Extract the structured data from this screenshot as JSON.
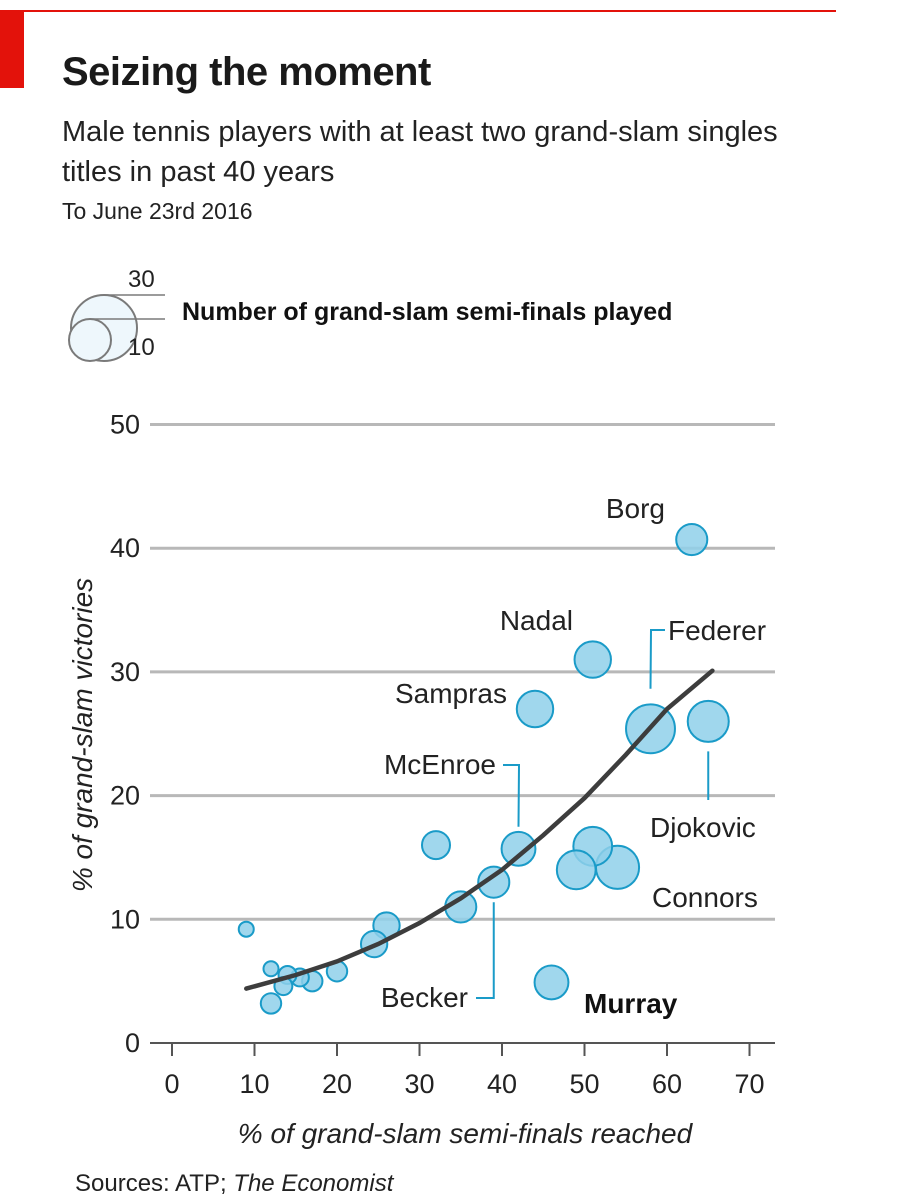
{
  "header": {
    "title": "Seizing the moment",
    "subtitle": "Male tennis players with at least two grand-slam singles titles in past 40 years",
    "note": "To June 23rd 2016"
  },
  "legend": {
    "label": "Number of grand-slam semi-finals played",
    "large_value": "30",
    "small_value": "10"
  },
  "source": {
    "prefix": "Sources: ATP; ",
    "publication": "The Economist"
  },
  "colors": {
    "accent": "#e3120b",
    "bubble_fill": "#8fd0ea",
    "bubble_stroke": "#1a9bc8",
    "trend": "#3d3d3d",
    "grid": "#b8b8b8"
  },
  "chart_data": {
    "type": "scatter",
    "xlabel": "% of grand-slam semi-finals reached",
    "ylabel": "% of grand-slam victories",
    "xlim": [
      0,
      70
    ],
    "ylim": [
      0,
      50
    ],
    "x_ticks": [
      0,
      10,
      20,
      30,
      40,
      50,
      60,
      70
    ],
    "y_ticks": [
      0,
      10,
      20,
      30,
      40,
      50
    ],
    "grid": "horizontal",
    "size_measure": "Number of grand-slam semi-finals played",
    "points": [
      {
        "label": "Borg",
        "x": 63,
        "y": 40.7,
        "size": 10
      },
      {
        "label": "Nadal",
        "x": 51,
        "y": 31,
        "size": 14
      },
      {
        "label": "Sampras",
        "x": 44,
        "y": 27,
        "size": 14
      },
      {
        "label": "Federer",
        "x": 58,
        "y": 25.4,
        "size": 26
      },
      {
        "label": "Djokovic",
        "x": 65,
        "y": 26,
        "size": 18
      },
      {
        "label": "McEnroe",
        "x": 42,
        "y": 15.7,
        "size": 12
      },
      {
        "label": "Connors",
        "x": 54,
        "y": 14.2,
        "size": 20
      },
      {
        "label": "Becker",
        "x": 39,
        "y": 13,
        "size": 10
      },
      {
        "label": "Murray",
        "x": 46,
        "y": 4.9,
        "size": 12
      },
      {
        "label": "",
        "x": 51,
        "y": 15.9,
        "size": 16
      },
      {
        "label": "",
        "x": 49,
        "y": 14,
        "size": 16
      },
      {
        "label": "",
        "x": 35,
        "y": 11,
        "size": 10
      },
      {
        "label": "",
        "x": 32,
        "y": 16,
        "size": 8
      },
      {
        "label": "",
        "x": 26,
        "y": 9.5,
        "size": 7
      },
      {
        "label": "",
        "x": 24.5,
        "y": 8,
        "size": 7
      },
      {
        "label": "",
        "x": 20,
        "y": 5.8,
        "size": 4
      },
      {
        "label": "",
        "x": 17,
        "y": 5,
        "size": 4
      },
      {
        "label": "",
        "x": 15.5,
        "y": 5.3,
        "size": 3
      },
      {
        "label": "",
        "x": 14,
        "y": 5.5,
        "size": 3
      },
      {
        "label": "",
        "x": 13.5,
        "y": 4.6,
        "size": 3
      },
      {
        "label": "",
        "x": 12,
        "y": 6,
        "size": 2
      },
      {
        "label": "",
        "x": 12,
        "y": 3.2,
        "size": 4
      },
      {
        "label": "",
        "x": 9,
        "y": 9.2,
        "size": 2
      }
    ],
    "trend_line": {
      "type": "exponential fit",
      "x": [
        9,
        15,
        20,
        25,
        30,
        35,
        40,
        45,
        50,
        55,
        60,
        65.5
      ],
      "y": [
        4.4,
        5.5,
        6.6,
        8.0,
        9.7,
        11.7,
        14.0,
        16.8,
        19.8,
        23.3,
        27.0,
        30.1
      ]
    },
    "callouts": {
      "Federer": "leader",
      "Djokovic": "leader",
      "McEnroe": "leader",
      "Becker": "leader",
      "Murray": "bold"
    }
  }
}
